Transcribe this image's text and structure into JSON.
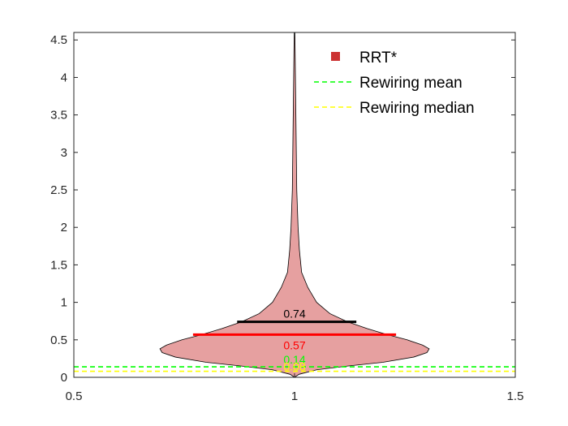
{
  "chart_data": {
    "type": "violin",
    "title": "",
    "xlabel": "",
    "ylabel": "",
    "xlim": [
      0.5,
      1.5
    ],
    "ylim": [
      0,
      4.6
    ],
    "x_ticks": [
      0.5,
      1,
      1.5
    ],
    "x_tick_labels": [
      "0.5",
      "1",
      "1.5"
    ],
    "y_ticks": [
      0,
      0.5,
      1,
      1.5,
      2,
      2.5,
      3,
      3.5,
      4,
      4.5
    ],
    "y_tick_labels": [
      "0",
      "0.5",
      "1",
      "1.5",
      "2",
      "2.5",
      "3",
      "3.5",
      "4",
      "4.5"
    ],
    "grid": false,
    "legend_position": "top-right",
    "series": [
      {
        "name": "RRT*",
        "color": "#e6a0a0",
        "center_x": 1,
        "density_profile": [
          {
            "y": 0.0,
            "half_width": 0.0
          },
          {
            "y": 0.04,
            "half_width": 0.01
          },
          {
            "y": 0.1,
            "half_width": 0.05
          },
          {
            "y": 0.15,
            "half_width": 0.12
          },
          {
            "y": 0.2,
            "half_width": 0.2
          },
          {
            "y": 0.27,
            "half_width": 0.27
          },
          {
            "y": 0.33,
            "half_width": 0.3
          },
          {
            "y": 0.38,
            "half_width": 0.305
          },
          {
            "y": 0.43,
            "half_width": 0.29
          },
          {
            "y": 0.5,
            "half_width": 0.255
          },
          {
            "y": 0.57,
            "half_width": 0.21
          },
          {
            "y": 0.65,
            "half_width": 0.165
          },
          {
            "y": 0.74,
            "half_width": 0.12
          },
          {
            "y": 0.85,
            "half_width": 0.08
          },
          {
            "y": 1.0,
            "half_width": 0.05
          },
          {
            "y": 1.2,
            "half_width": 0.03
          },
          {
            "y": 1.4,
            "half_width": 0.016
          },
          {
            "y": 1.7,
            "half_width": 0.011
          },
          {
            "y": 2.0,
            "half_width": 0.008
          },
          {
            "y": 2.5,
            "half_width": 0.005
          },
          {
            "y": 3.0,
            "half_width": 0.004
          },
          {
            "y": 3.5,
            "half_width": 0.003
          },
          {
            "y": 4.0,
            "half_width": 0.002
          },
          {
            "y": 4.5,
            "half_width": 0.001
          },
          {
            "y": 4.75,
            "half_width": 0.0005
          }
        ]
      }
    ],
    "statistics": [
      {
        "label": "0.74",
        "value": 0.74,
        "color": "#000000",
        "x_range": [
          0.87,
          1.14
        ]
      },
      {
        "label": "0.57",
        "value": 0.57,
        "color": "#ff0000",
        "x_range": [
          0.77,
          1.23
        ]
      }
    ],
    "reference_lines": [
      {
        "name": "Rewiring mean",
        "value": 0.14,
        "color": "#00ff00",
        "style": "dashed"
      },
      {
        "name": "Rewiring median",
        "value": 0.08,
        "color": "#ffff00",
        "style": "dashed"
      }
    ],
    "reference_labels": [
      {
        "label": "0.14",
        "value": 0.14,
        "color": "#00ff00"
      },
      {
        "label": "0.08",
        "value": 0.08,
        "color": "#ffff00"
      }
    ],
    "legend": [
      {
        "label": "RRT*",
        "color": "#cc3333",
        "marker": "square"
      },
      {
        "label": "Rewiring mean",
        "color": "#00ff00",
        "marker": "dashed-line"
      },
      {
        "label": "Rewiring median",
        "color": "#ffff00",
        "marker": "dashed-line"
      }
    ]
  }
}
